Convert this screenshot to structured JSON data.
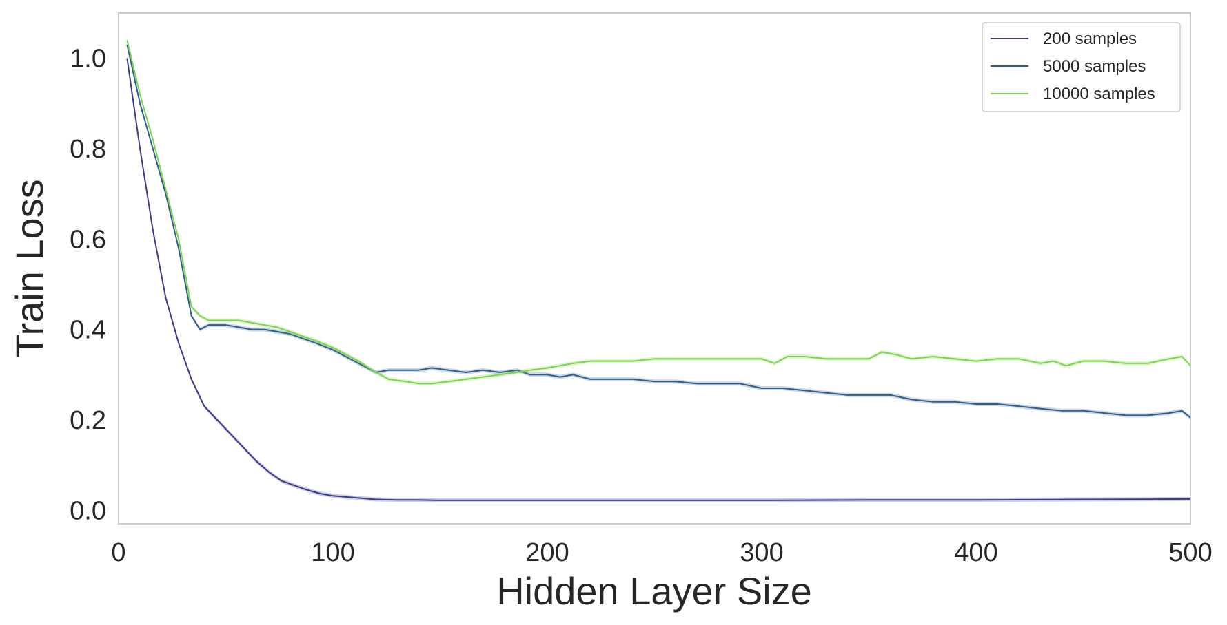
{
  "chart_data": {
    "type": "line",
    "xlabel": "Hidden Layer Size",
    "ylabel": "Train Loss",
    "xlim": [
      0,
      500
    ],
    "ylim": [
      -0.03,
      1.1
    ],
    "xticks": [
      0,
      100,
      200,
      300,
      400,
      500
    ],
    "xtick_labels": [
      "0",
      "100",
      "200",
      "300",
      "400",
      "500"
    ],
    "yticks": [
      0.0,
      0.2,
      0.4,
      0.6,
      0.8,
      1.0
    ],
    "ytick_labels": [
      "0.0",
      "0.2",
      "0.4",
      "0.6",
      "0.8",
      "1.0"
    ],
    "grid": false,
    "legend_position": "top-right",
    "series": [
      {
        "name": "200 samples",
        "color": "#3b3b8f",
        "x": [
          4,
          10,
          16,
          22,
          28,
          34,
          40,
          46,
          52,
          58,
          64,
          70,
          76,
          82,
          88,
          94,
          100,
          110,
          120,
          130,
          140,
          150,
          170,
          200,
          250,
          300,
          350,
          400,
          450,
          500
        ],
        "y": [
          1.0,
          0.8,
          0.62,
          0.47,
          0.37,
          0.29,
          0.23,
          0.2,
          0.17,
          0.14,
          0.11,
          0.085,
          0.065,
          0.055,
          0.045,
          0.037,
          0.032,
          0.028,
          0.024,
          0.023,
          0.023,
          0.022,
          0.022,
          0.022,
          0.022,
          0.022,
          0.023,
          0.023,
          0.024,
          0.025
        ]
      },
      {
        "name": "5000 samples",
        "color": "#2f5f8a",
        "x": [
          4,
          10,
          16,
          22,
          28,
          34,
          38,
          42,
          46,
          50,
          56,
          62,
          68,
          74,
          80,
          86,
          92,
          100,
          106,
          112,
          120,
          126,
          134,
          140,
          146,
          154,
          162,
          170,
          178,
          186,
          192,
          200,
          206,
          212,
          220,
          230,
          240,
          250,
          260,
          270,
          280,
          290,
          300,
          310,
          320,
          330,
          340,
          350,
          360,
          370,
          380,
          390,
          400,
          410,
          420,
          430,
          440,
          450,
          460,
          470,
          480,
          490,
          496,
          500
        ],
        "y": [
          1.03,
          0.9,
          0.8,
          0.7,
          0.58,
          0.43,
          0.4,
          0.41,
          0.41,
          0.41,
          0.405,
          0.4,
          0.4,
          0.395,
          0.39,
          0.38,
          0.37,
          0.355,
          0.34,
          0.325,
          0.305,
          0.31,
          0.31,
          0.31,
          0.315,
          0.31,
          0.305,
          0.31,
          0.305,
          0.31,
          0.3,
          0.3,
          0.295,
          0.3,
          0.29,
          0.29,
          0.29,
          0.285,
          0.285,
          0.28,
          0.28,
          0.28,
          0.27,
          0.27,
          0.265,
          0.26,
          0.255,
          0.255,
          0.255,
          0.245,
          0.24,
          0.24,
          0.235,
          0.235,
          0.23,
          0.225,
          0.22,
          0.22,
          0.215,
          0.21,
          0.21,
          0.215,
          0.22,
          0.205
        ]
      },
      {
        "name": "10000 samples",
        "color": "#7fd34e",
        "x": [
          4,
          10,
          16,
          22,
          28,
          34,
          38,
          42,
          46,
          50,
          56,
          62,
          68,
          74,
          80,
          86,
          92,
          100,
          106,
          112,
          120,
          126,
          134,
          140,
          146,
          154,
          162,
          170,
          178,
          186,
          192,
          200,
          206,
          212,
          220,
          230,
          240,
          250,
          260,
          270,
          280,
          290,
          300,
          306,
          312,
          320,
          330,
          340,
          350,
          356,
          362,
          370,
          380,
          390,
          400,
          410,
          420,
          430,
          436,
          442,
          450,
          460,
          470,
          480,
          490,
          496,
          500
        ],
        "y": [
          1.04,
          0.92,
          0.82,
          0.71,
          0.6,
          0.45,
          0.43,
          0.42,
          0.42,
          0.42,
          0.42,
          0.415,
          0.41,
          0.405,
          0.395,
          0.385,
          0.375,
          0.36,
          0.345,
          0.33,
          0.305,
          0.29,
          0.285,
          0.28,
          0.28,
          0.285,
          0.29,
          0.295,
          0.3,
          0.305,
          0.31,
          0.315,
          0.32,
          0.325,
          0.33,
          0.33,
          0.33,
          0.335,
          0.335,
          0.335,
          0.335,
          0.335,
          0.335,
          0.325,
          0.34,
          0.34,
          0.335,
          0.335,
          0.335,
          0.35,
          0.345,
          0.335,
          0.34,
          0.335,
          0.33,
          0.335,
          0.335,
          0.325,
          0.33,
          0.32,
          0.33,
          0.33,
          0.325,
          0.325,
          0.335,
          0.34,
          0.32
        ]
      }
    ]
  }
}
